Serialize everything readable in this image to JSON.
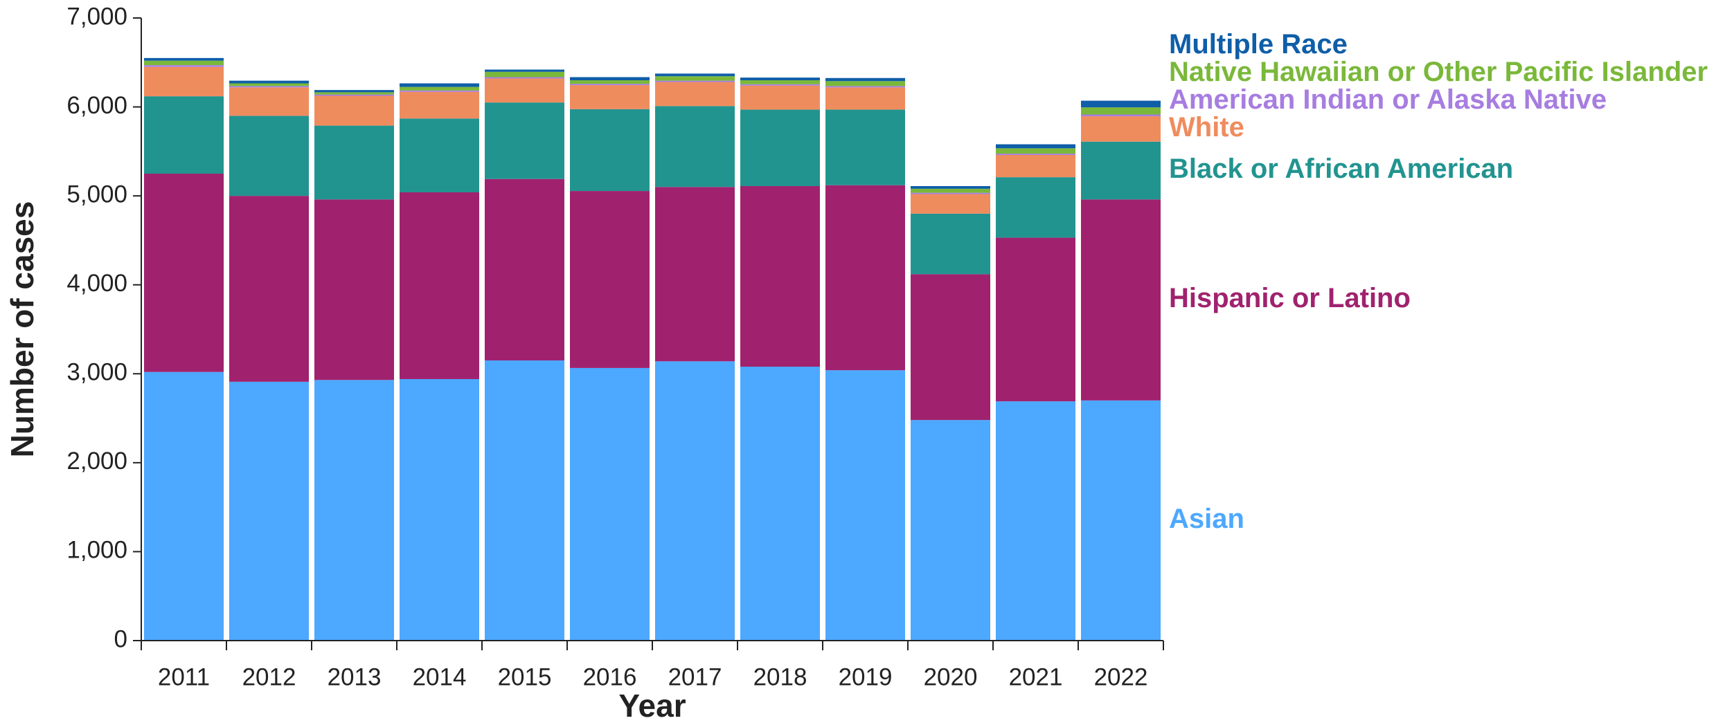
{
  "chart_data": {
    "type": "stacked-bar",
    "x_label": "Year",
    "y_label": "Number of cases",
    "categories": [
      "2011",
      "2012",
      "2013",
      "2014",
      "2015",
      "2016",
      "2017",
      "2018",
      "2019",
      "2020",
      "2021",
      "2022"
    ],
    "series": [
      {
        "name": "Asian",
        "color": "#4da8ff",
        "values": [
          3020,
          2910,
          2930,
          2940,
          3150,
          3065,
          3140,
          3080,
          3040,
          2480,
          2690,
          2700
        ]
      },
      {
        "name": "Hispanic or Latino",
        "color": "#a0226e",
        "values": [
          2230,
          2090,
          2030,
          2100,
          2040,
          1990,
          1960,
          2030,
          2080,
          1640,
          1840,
          2260
        ]
      },
      {
        "name": "Black or African American",
        "color": "#229490",
        "values": [
          870,
          900,
          830,
          830,
          860,
          920,
          910,
          860,
          850,
          680,
          680,
          650
        ]
      },
      {
        "name": "White",
        "color": "#ef8c5e",
        "values": [
          330,
          320,
          335,
          300,
          270,
          270,
          270,
          270,
          250,
          220,
          250,
          285
        ]
      },
      {
        "name": "American Indian or Alaska Native",
        "color": "#a77de0",
        "values": [
          20,
          15,
          15,
          15,
          15,
          15,
          15,
          15,
          15,
          15,
          15,
          20
        ]
      },
      {
        "name": "Native Hawaiian or Other Pacific Islander",
        "color": "#7ab83a",
        "values": [
          50,
          30,
          25,
          40,
          60,
          40,
          50,
          45,
          55,
          45,
          60,
          80
        ]
      },
      {
        "name": "Multiple Race",
        "color": "#0f5ea8",
        "values": [
          30,
          30,
          25,
          40,
          25,
          35,
          30,
          30,
          35,
          30,
          45,
          75
        ]
      }
    ],
    "ylim": [
      0,
      7000
    ],
    "yticks": [
      0,
      {
        "value": 1000,
        "label": "1,000"
      },
      {
        "value": 2000,
        "label": "2,000"
      },
      {
        "value": 3000,
        "label": "3,000"
      },
      {
        "value": 4000,
        "label": "4,000"
      },
      {
        "value": 5000,
        "label": "5,000"
      },
      {
        "value": 6000,
        "label": "6,000"
      },
      {
        "value": 7000,
        "label": "7,000"
      }
    ],
    "grid": false
  }
}
